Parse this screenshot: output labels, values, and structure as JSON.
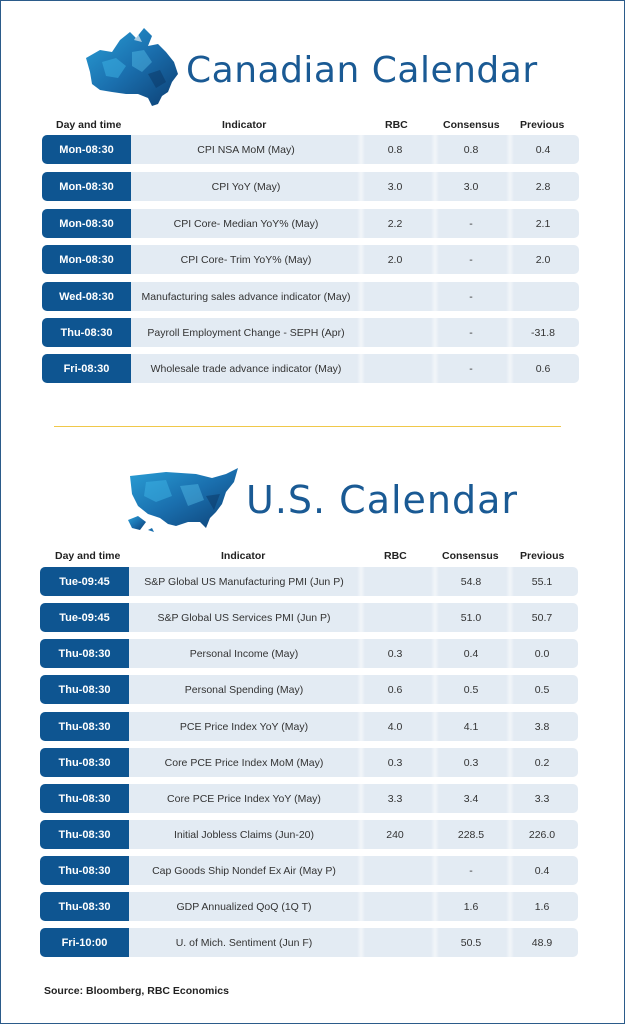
{
  "canada": {
    "title": "Canadian Calendar",
    "headers": {
      "day": "Day and time",
      "indicator": "Indicator",
      "rbc": "RBC",
      "consensus": "Consensus",
      "previous": "Previous"
    },
    "rows": [
      {
        "day": "Mon-08:30",
        "indicator": "CPI NSA MoM (May)",
        "rbc": "0.8",
        "consensus": "0.8",
        "previous": "0.4"
      },
      {
        "day": "Mon-08:30",
        "indicator": "CPI YoY (May)",
        "rbc": "3.0",
        "consensus": "3.0",
        "previous": "2.8"
      },
      {
        "day": "Mon-08:30",
        "indicator": "CPI Core- Median YoY% (May)",
        "rbc": "2.2",
        "consensus": "-",
        "previous": "2.1"
      },
      {
        "day": "Mon-08:30",
        "indicator": "CPI Core- Trim YoY% (May)",
        "rbc": "2.0",
        "consensus": "-",
        "previous": "2.0"
      },
      {
        "day": "Wed-08:30",
        "indicator": "Manufacturing sales advance indicator (May)",
        "rbc": "",
        "consensus": "-",
        "previous": ""
      },
      {
        "day": "Thu-08:30",
        "indicator": "Payroll Employment Change - SEPH (Apr)",
        "rbc": "",
        "consensus": "-",
        "previous": "-31.8"
      },
      {
        "day": "Fri-08:30",
        "indicator": "Wholesale trade advance indicator (May)",
        "rbc": "",
        "consensus": "-",
        "previous": "0.6"
      }
    ]
  },
  "us": {
    "title": "U.S. Calendar",
    "headers": {
      "day": "Day and time",
      "indicator": "Indicator",
      "rbc": "RBC",
      "consensus": "Consensus",
      "previous": "Previous"
    },
    "rows": [
      {
        "day": "Tue-09:45",
        "indicator": "S&P Global US Manufacturing PMI (Jun P)",
        "rbc": "",
        "consensus": "54.8",
        "previous": "55.1"
      },
      {
        "day": "Tue-09:45",
        "indicator": "S&P Global US Services PMI (Jun P)",
        "rbc": "",
        "consensus": "51.0",
        "previous": "50.7"
      },
      {
        "day": "Thu-08:30",
        "indicator": "Personal Income (May)",
        "rbc": "0.3",
        "consensus": "0.4",
        "previous": "0.0"
      },
      {
        "day": "Thu-08:30",
        "indicator": "Personal Spending (May)",
        "rbc": "0.6",
        "consensus": "0.5",
        "previous": "0.5"
      },
      {
        "day": "Thu-08:30",
        "indicator": "PCE Price Index YoY (May)",
        "rbc": "4.0",
        "consensus": "4.1",
        "previous": "3.8"
      },
      {
        "day": "Thu-08:30",
        "indicator": "Core PCE Price Index MoM (May)",
        "rbc": "0.3",
        "consensus": "0.3",
        "previous": "0.2"
      },
      {
        "day": "Thu-08:30",
        "indicator": "Core PCE Price Index YoY (May)",
        "rbc": "3.3",
        "consensus": "3.4",
        "previous": "3.3"
      },
      {
        "day": "Thu-08:30",
        "indicator": "Initial Jobless Claims (Jun-20)",
        "rbc": "240",
        "consensus": "228.5",
        "previous": "226.0"
      },
      {
        "day": "Thu-08:30",
        "indicator": "Cap Goods Ship Nondef Ex Air (May P)",
        "rbc": "",
        "consensus": "-",
        "previous": "0.4"
      },
      {
        "day": "Thu-08:30",
        "indicator": "GDP Annualized QoQ (1Q T)",
        "rbc": "",
        "consensus": "1.6",
        "previous": "1.6"
      },
      {
        "day": "Fri-10:00",
        "indicator": "U. of Mich. Sentiment (Jun F)",
        "rbc": "",
        "consensus": "50.5",
        "previous": "48.9"
      }
    ]
  },
  "source": "Source: Bloomberg, RBC Economics",
  "colors": {
    "title": "#1a5a94",
    "day_cell": "#0e5591",
    "row_bg": "#e3ebf3",
    "divider": "#f0c84a"
  }
}
